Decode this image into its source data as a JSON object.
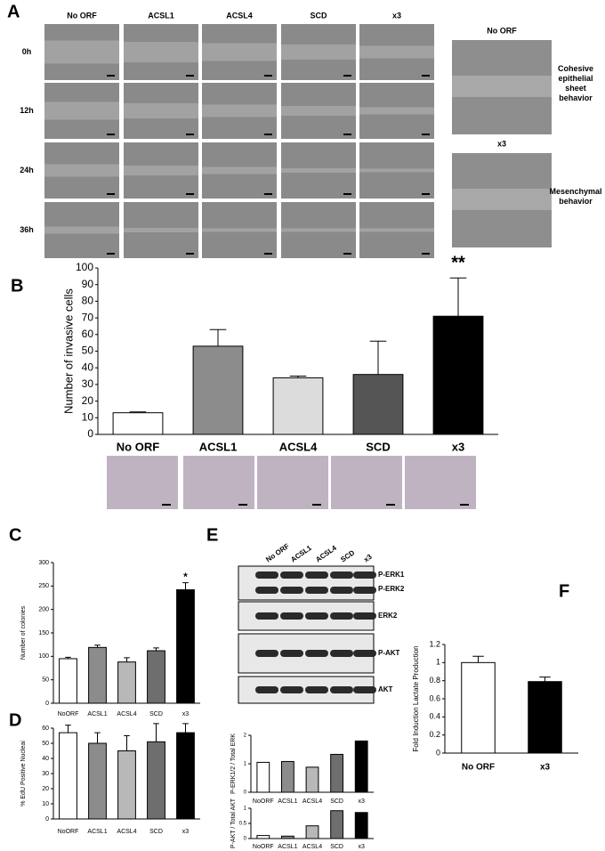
{
  "panel_labels": [
    "A",
    "B",
    "C",
    "D",
    "E",
    "F"
  ],
  "panel_a": {
    "columns": [
      "No ORF",
      "ACSL1",
      "ACSL4",
      "SCD",
      "x3"
    ],
    "rows": [
      "0h",
      "12h",
      "24h",
      "36h"
    ],
    "side_panels": [
      {
        "title": "No ORF",
        "caption": "Cohesive epithelial sheet behavior"
      },
      {
        "title": "x3",
        "caption": "Mesenchymal behavior"
      }
    ]
  },
  "western_blot": {
    "lanes": [
      "No ORF",
      "ACSL1",
      "ACSL4",
      "SCD",
      "x3"
    ],
    "bands": [
      "P-ERK1",
      "P-ERK2",
      "ERK2",
      "P-AKT",
      "AKT"
    ]
  },
  "chart_data": [
    {
      "type": "bar",
      "y_label": "Number of invasive cells",
      "categories": [
        "No ORF",
        "ACSL1",
        "ACSL4",
        "SCD",
        "x3"
      ],
      "values": [
        13,
        53,
        34,
        36,
        71
      ],
      "errors": [
        0.5,
        10,
        1,
        20,
        23
      ],
      "colors": [
        "#ffffff",
        "#8c8c8c",
        "#dcdcdc",
        "#555555",
        "#000000"
      ],
      "ylim": [
        0,
        100
      ],
      "yticks": [
        0,
        10,
        20,
        30,
        40,
        50,
        60,
        70,
        80,
        90,
        100
      ],
      "annotation": "**"
    },
    {
      "type": "bar",
      "y_label": "Number of colonies",
      "categories": [
        "NoORF",
        "ACSL1",
        "ACSL4",
        "SCD",
        "x3"
      ],
      "values": [
        95,
        119,
        88,
        112,
        242
      ],
      "errors": [
        3,
        5,
        9,
        6,
        15
      ],
      "colors": [
        "#ffffff",
        "#8c8c8c",
        "#b8b8b8",
        "#6e6e6e",
        "#000000"
      ],
      "ylim": [
        0,
        300
      ],
      "yticks": [
        0,
        50,
        100,
        150,
        200,
        250,
        300
      ],
      "annotation": "*"
    },
    {
      "type": "bar",
      "y_label": "% EdU Positive Nucleai",
      "categories": [
        "NoORF",
        "ACSL1",
        "ACSL4",
        "SCD",
        "x3"
      ],
      "values": [
        57,
        50,
        45,
        51,
        57
      ],
      "errors": [
        5,
        7,
        10,
        12,
        6
      ],
      "colors": [
        "#ffffff",
        "#8c8c8c",
        "#b8b8b8",
        "#6e6e6e",
        "#000000"
      ],
      "ylim": [
        0,
        60
      ],
      "yticks": [
        0,
        10,
        20,
        30,
        40,
        50,
        60
      ]
    },
    {
      "type": "bar",
      "y_label": "P-ERK1/2 / Total ERK",
      "categories": [
        "NoORF",
        "ACSL1",
        "ACSL4",
        "SCD",
        "x3"
      ],
      "values": [
        1.05,
        1.08,
        0.88,
        1.33,
        1.8
      ],
      "colors": [
        "#ffffff",
        "#8c8c8c",
        "#b8b8b8",
        "#6e6e6e",
        "#000000"
      ],
      "ylim": [
        0,
        2
      ],
      "yticks": [
        0,
        1,
        2
      ]
    },
    {
      "type": "bar",
      "y_label": "P-AKT / Total AKT",
      "categories": [
        "NoORF",
        "ACSL1",
        "ACSL4",
        "SCD",
        "x3"
      ],
      "values": [
        0.1,
        0.08,
        0.42,
        0.92,
        0.86
      ],
      "colors": [
        "#ffffff",
        "#8c8c8c",
        "#b8b8b8",
        "#6e6e6e",
        "#000000"
      ],
      "ylim": [
        0,
        1
      ],
      "yticks": [
        0,
        0.5,
        1
      ]
    },
    {
      "type": "bar",
      "y_label": "Fold Induction Lactate Production",
      "categories": [
        "No ORF",
        "x3"
      ],
      "values": [
        1.0,
        0.79
      ],
      "errors": [
        0.07,
        0.05
      ],
      "colors": [
        "#ffffff",
        "#000000"
      ],
      "ylim": [
        0,
        1.2
      ],
      "yticks": [
        0,
        0.2,
        0.4,
        0.6,
        0.8,
        1,
        1.2
      ]
    }
  ]
}
